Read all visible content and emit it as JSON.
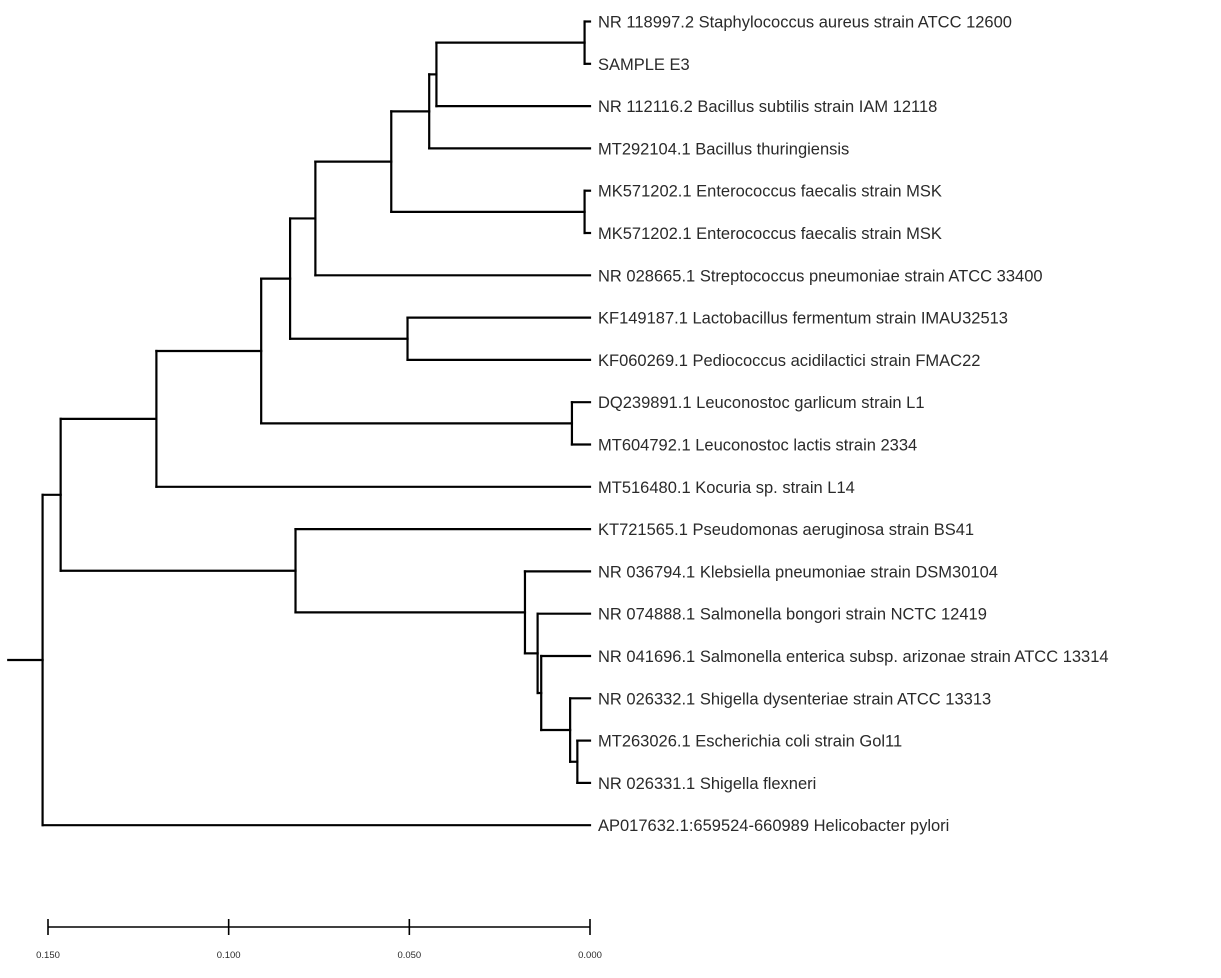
{
  "tree": {
    "leaves": [
      {
        "label": "NR 118997.2 Staphylococcus aureus strain ATCC 12600",
        "color": "#222222"
      },
      {
        "label": "SAMPLE E3",
        "color": "#e8322d"
      },
      {
        "label": "NR 112116.2 Bacillus subtilis strain IAM 12118",
        "color": "#222222"
      },
      {
        "label": "MT292104.1 Bacillus thuringiensis",
        "color": "#222222"
      },
      {
        "label": "MK571202.1 Enterococcus faecalis strain MSK",
        "color": "#222222"
      },
      {
        "label": "MK571202.1 Enterococcus faecalis strain MSK",
        "color": "#222222"
      },
      {
        "label": "NR 028665.1 Streptococcus pneumoniae strain ATCC 33400",
        "color": "#222222"
      },
      {
        "label": "KF149187.1 Lactobacillus fermentum strain IMAU32513",
        "color": "#222222"
      },
      {
        "label": "KF060269.1 Pediococcus acidilactici strain FMAC22",
        "color": "#222222"
      },
      {
        "label": "DQ239891.1 Leuconostoc garlicum strain L1",
        "color": "#222222"
      },
      {
        "label": "MT604792.1 Leuconostoc lactis strain 2334",
        "color": "#222222"
      },
      {
        "label": "MT516480.1 Kocuria sp. strain L14",
        "color": "#222222"
      },
      {
        "label": "KT721565.1 Pseudomonas aeruginosa strain BS41",
        "color": "#222222"
      },
      {
        "label": "NR 036794.1 Klebsiella pneumoniae strain DSM30104",
        "color": "#222222"
      },
      {
        "label": "NR 074888.1 Salmonella bongori strain NCTC 12419",
        "color": "#222222"
      },
      {
        "label": "NR 041696.1 Salmonella enterica subsp. arizonae strain ATCC 13314",
        "color": "#222222"
      },
      {
        "label": "NR 026332.1 Shigella dysenteriae strain ATCC 13313",
        "color": "#222222"
      },
      {
        "label": "MT263026.1 Escherichia coli strain Gol11",
        "color": "#222222"
      },
      {
        "label": "NR 026331.1 Shigella flexneri",
        "color": "#222222"
      },
      {
        "label": "AP017632.1:659524-660989 Helicobacter pylori",
        "color": "#222222"
      }
    ],
    "nodes": [
      {
        "name": "n-staph-sample",
        "depth": 0.0015,
        "children": [
          "L0",
          "L1"
        ]
      },
      {
        "name": "n-staph-bsub",
        "depth": 0.0425,
        "children": [
          "n-staph-sample",
          "L2"
        ]
      },
      {
        "name": "n-bacillus",
        "depth": 0.0445,
        "children": [
          "n-staph-bsub",
          "L3"
        ]
      },
      {
        "name": "n-entero",
        "depth": 0.0015,
        "children": [
          "L4",
          "L5"
        ]
      },
      {
        "name": "n-firmicutes-a",
        "depth": 0.055,
        "children": [
          "n-bacillus",
          "n-entero"
        ]
      },
      {
        "name": "n-firmicutes-b",
        "depth": 0.076,
        "children": [
          "n-firmicutes-a",
          "L6"
        ]
      },
      {
        "name": "n-lacto-pedio",
        "depth": 0.0505,
        "children": [
          "L7",
          "L8"
        ]
      },
      {
        "name": "n-lactic",
        "depth": 0.083,
        "children": [
          "n-firmicutes-b",
          "n-lacto-pedio"
        ]
      },
      {
        "name": "n-leuco",
        "depth": 0.005,
        "children": [
          "L9",
          "L10"
        ]
      },
      {
        "name": "n-lactic-leuco",
        "depth": 0.091,
        "children": [
          "n-lactic",
          "n-leuco"
        ]
      },
      {
        "name": "n-gram-pos",
        "depth": 0.12,
        "children": [
          "n-lactic-leuco",
          "L11"
        ]
      },
      {
        "name": "n-ecoli-shig",
        "depth": 0.0035,
        "children": [
          "L17",
          "L18"
        ]
      },
      {
        "name": "n-shigella",
        "depth": 0.0055,
        "children": [
          "L16",
          "n-ecoli-shig"
        ]
      },
      {
        "name": "n-sal-enterica",
        "depth": 0.0135,
        "children": [
          "L15",
          "n-shigella"
        ]
      },
      {
        "name": "n-salmonella",
        "depth": 0.0145,
        "children": [
          "L14",
          "n-sal-enterica"
        ]
      },
      {
        "name": "n-enterobact",
        "depth": 0.018,
        "children": [
          "L13",
          "n-salmonella"
        ]
      },
      {
        "name": "n-proteo",
        "depth": 0.0815,
        "children": [
          "L12",
          "n-enterobact"
        ]
      },
      {
        "name": "n-ingroup",
        "depth": 0.1465,
        "children": [
          "n-gram-pos",
          "n-proteo"
        ]
      },
      {
        "name": "n-root",
        "depth": 0.1515,
        "children": [
          "n-ingroup",
          "L19"
        ]
      }
    ],
    "root_stub": 0.0095
  },
  "scale": {
    "max": 0.15,
    "ticks": [
      {
        "value": 0.15,
        "label": "0.150"
      },
      {
        "value": 0.1,
        "label": "0.100"
      },
      {
        "value": 0.05,
        "label": "0.050"
      },
      {
        "value": 0.0,
        "label": "0.000"
      }
    ]
  }
}
